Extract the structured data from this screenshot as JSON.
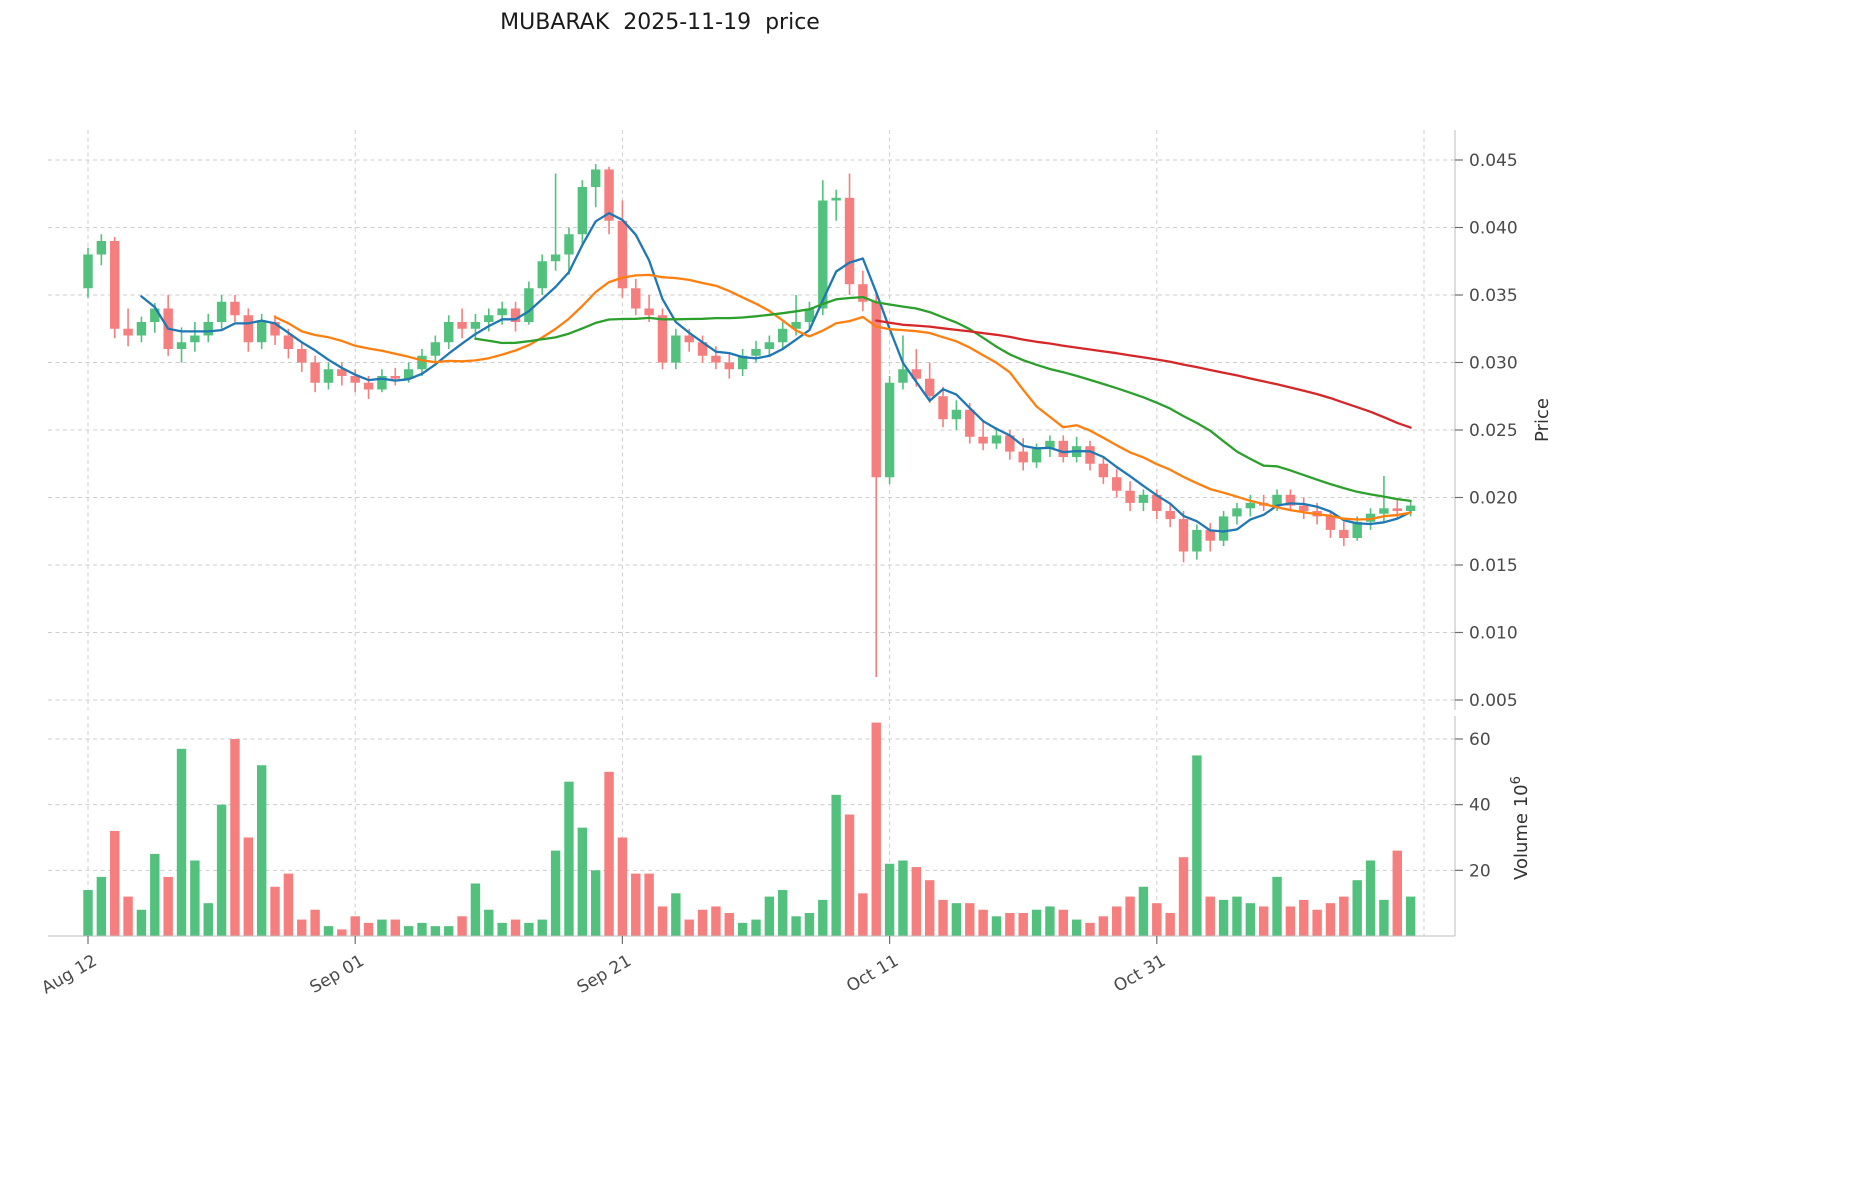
{
  "chart_data": {
    "type": "candlestick",
    "title": "MUBARAK  2025-11-19  price",
    "ylabel": "Price",
    "volume_ylabel_base": "Volume  10",
    "volume_ylabel_exp": "6",
    "legend_position": "none",
    "grid": true,
    "price_ticks": [
      0.005,
      0.01,
      0.015,
      0.02,
      0.025,
      0.03,
      0.035,
      0.04,
      0.045
    ],
    "price_ylim": [
      0.0043,
      0.0472
    ],
    "volume_ticks": [
      20,
      40,
      60
    ],
    "volume_ylim": [
      0,
      67
    ],
    "x_ticks": [
      {
        "index": 0,
        "label": "Aug 12"
      },
      {
        "index": 20,
        "label": "Sep 01"
      },
      {
        "index": 40,
        "label": "Sep 21"
      },
      {
        "index": 60,
        "label": "Oct 11"
      },
      {
        "index": 80,
        "label": "Oct 31"
      },
      {
        "index": 100,
        "label": ""
      }
    ],
    "up_color": "#53c17e",
    "down_color": "#f57e7e",
    "ma_windows": [
      5,
      15,
      30,
      60
    ],
    "ma_colors": [
      "#1f77b4",
      "#ff7f0e",
      "#2ca02c",
      "#d62728"
    ],
    "candles_format": [
      "open",
      "high",
      "low",
      "close",
      "volume_millions"
    ],
    "candles": [
      [
        0.0355,
        0.0385,
        0.0348,
        0.038,
        14
      ],
      [
        0.038,
        0.0395,
        0.0372,
        0.039,
        18
      ],
      [
        0.039,
        0.0393,
        0.0318,
        0.0325,
        32
      ],
      [
        0.0325,
        0.034,
        0.0312,
        0.032,
        12
      ],
      [
        0.032,
        0.0334,
        0.0315,
        0.033,
        8
      ],
      [
        0.033,
        0.0344,
        0.0322,
        0.034,
        25
      ],
      [
        0.034,
        0.035,
        0.0305,
        0.031,
        18
      ],
      [
        0.031,
        0.0326,
        0.03,
        0.0315,
        57
      ],
      [
        0.0315,
        0.033,
        0.0308,
        0.032,
        23
      ],
      [
        0.032,
        0.0336,
        0.0315,
        0.033,
        10
      ],
      [
        0.033,
        0.035,
        0.0325,
        0.0345,
        40
      ],
      [
        0.0345,
        0.035,
        0.033,
        0.0335,
        60
      ],
      [
        0.0335,
        0.034,
        0.0308,
        0.0315,
        30
      ],
      [
        0.0315,
        0.0336,
        0.031,
        0.033,
        52
      ],
      [
        0.033,
        0.0335,
        0.0313,
        0.032,
        15
      ],
      [
        0.032,
        0.0325,
        0.0303,
        0.031,
        19
      ],
      [
        0.031,
        0.0315,
        0.0293,
        0.03,
        5
      ],
      [
        0.03,
        0.0305,
        0.0278,
        0.0285,
        8
      ],
      [
        0.0285,
        0.03,
        0.028,
        0.0295,
        3
      ],
      [
        0.0295,
        0.03,
        0.0283,
        0.029,
        2
      ],
      [
        0.029,
        0.0295,
        0.0278,
        0.0285,
        6
      ],
      [
        0.0285,
        0.029,
        0.0273,
        0.028,
        4
      ],
      [
        0.028,
        0.0295,
        0.0278,
        0.029,
        5
      ],
      [
        0.029,
        0.0296,
        0.0283,
        0.0288,
        5
      ],
      [
        0.0288,
        0.03,
        0.0285,
        0.0295,
        3
      ],
      [
        0.0295,
        0.031,
        0.029,
        0.0305,
        4
      ],
      [
        0.0305,
        0.032,
        0.03,
        0.0315,
        3
      ],
      [
        0.0315,
        0.0335,
        0.031,
        0.033,
        3
      ],
      [
        0.033,
        0.034,
        0.0318,
        0.0325,
        6
      ],
      [
        0.0325,
        0.0336,
        0.0318,
        0.033,
        16
      ],
      [
        0.033,
        0.034,
        0.0323,
        0.0335,
        8
      ],
      [
        0.0335,
        0.0345,
        0.0328,
        0.034,
        4
      ],
      [
        0.034,
        0.0345,
        0.0323,
        0.033,
        5
      ],
      [
        0.033,
        0.036,
        0.0328,
        0.0355,
        4
      ],
      [
        0.0355,
        0.038,
        0.035,
        0.0375,
        5
      ],
      [
        0.0375,
        0.044,
        0.0368,
        0.038,
        26
      ],
      [
        0.038,
        0.04,
        0.0365,
        0.0395,
        47
      ],
      [
        0.0395,
        0.0435,
        0.0388,
        0.043,
        33
      ],
      [
        0.043,
        0.0447,
        0.0415,
        0.0443,
        20
      ],
      [
        0.0443,
        0.0445,
        0.0395,
        0.0405,
        50
      ],
      [
        0.0405,
        0.042,
        0.0348,
        0.0355,
        30
      ],
      [
        0.0355,
        0.0362,
        0.0335,
        0.034,
        19
      ],
      [
        0.034,
        0.035,
        0.033,
        0.0335,
        19
      ],
      [
        0.0335,
        0.034,
        0.0295,
        0.03,
        9
      ],
      [
        0.03,
        0.0325,
        0.0295,
        0.032,
        13
      ],
      [
        0.032,
        0.0325,
        0.0308,
        0.0315,
        5
      ],
      [
        0.0315,
        0.032,
        0.03,
        0.0305,
        8
      ],
      [
        0.0305,
        0.0312,
        0.0295,
        0.03,
        9
      ],
      [
        0.03,
        0.0306,
        0.0288,
        0.0295,
        7
      ],
      [
        0.0295,
        0.031,
        0.029,
        0.0305,
        4
      ],
      [
        0.0305,
        0.0316,
        0.03,
        0.031,
        5
      ],
      [
        0.031,
        0.032,
        0.0304,
        0.0315,
        12
      ],
      [
        0.0315,
        0.033,
        0.031,
        0.0325,
        14
      ],
      [
        0.0325,
        0.035,
        0.032,
        0.033,
        6
      ],
      [
        0.033,
        0.0345,
        0.0325,
        0.034,
        7
      ],
      [
        0.034,
        0.0435,
        0.0335,
        0.042,
        11
      ],
      [
        0.042,
        0.0428,
        0.0405,
        0.0422,
        43
      ],
      [
        0.0422,
        0.044,
        0.035,
        0.0358,
        37
      ],
      [
        0.0358,
        0.0368,
        0.0338,
        0.0345,
        13
      ],
      [
        0.0345,
        0.0352,
        0.0067,
        0.0215,
        65
      ],
      [
        0.0215,
        0.029,
        0.021,
        0.0285,
        22
      ],
      [
        0.0285,
        0.032,
        0.028,
        0.0295,
        23
      ],
      [
        0.0295,
        0.031,
        0.0282,
        0.0288,
        21
      ],
      [
        0.0288,
        0.03,
        0.027,
        0.0275,
        17
      ],
      [
        0.0275,
        0.0282,
        0.0252,
        0.0258,
        11
      ],
      [
        0.0258,
        0.0272,
        0.025,
        0.0265,
        10
      ],
      [
        0.0265,
        0.027,
        0.024,
        0.0245,
        10
      ],
      [
        0.0245,
        0.0256,
        0.0235,
        0.024,
        8
      ],
      [
        0.024,
        0.0252,
        0.0236,
        0.0246,
        6
      ],
      [
        0.0246,
        0.025,
        0.0228,
        0.0234,
        7
      ],
      [
        0.0234,
        0.0244,
        0.022,
        0.0226,
        7
      ],
      [
        0.0226,
        0.024,
        0.0222,
        0.0236,
        8
      ],
      [
        0.0236,
        0.0246,
        0.023,
        0.0242,
        9
      ],
      [
        0.0242,
        0.0246,
        0.0226,
        0.023,
        8
      ],
      [
        0.023,
        0.0245,
        0.0226,
        0.0238,
        5
      ],
      [
        0.0238,
        0.0242,
        0.022,
        0.0225,
        4
      ],
      [
        0.0225,
        0.023,
        0.021,
        0.0215,
        6
      ],
      [
        0.0215,
        0.0221,
        0.02,
        0.0205,
        9
      ],
      [
        0.0205,
        0.0212,
        0.019,
        0.0196,
        12
      ],
      [
        0.0196,
        0.0206,
        0.019,
        0.0202,
        15
      ],
      [
        0.0202,
        0.0206,
        0.0184,
        0.019,
        10
      ],
      [
        0.019,
        0.0196,
        0.0178,
        0.0184,
        7
      ],
      [
        0.0184,
        0.019,
        0.0152,
        0.016,
        24
      ],
      [
        0.016,
        0.018,
        0.0154,
        0.0176,
        55
      ],
      [
        0.0176,
        0.0181,
        0.016,
        0.0168,
        12
      ],
      [
        0.0168,
        0.019,
        0.0164,
        0.0186,
        11
      ],
      [
        0.0186,
        0.0196,
        0.018,
        0.0192,
        12
      ],
      [
        0.0192,
        0.0202,
        0.0186,
        0.0196,
        10
      ],
      [
        0.0196,
        0.0202,
        0.019,
        0.0194,
        9
      ],
      [
        0.0194,
        0.0206,
        0.019,
        0.0202,
        18
      ],
      [
        0.0202,
        0.0206,
        0.019,
        0.0194,
        9
      ],
      [
        0.0194,
        0.02,
        0.0184,
        0.019,
        11
      ],
      [
        0.019,
        0.0196,
        0.018,
        0.0186,
        8
      ],
      [
        0.0186,
        0.019,
        0.017,
        0.0176,
        10
      ],
      [
        0.0176,
        0.0182,
        0.0164,
        0.017,
        12
      ],
      [
        0.017,
        0.0186,
        0.0168,
        0.0182,
        17
      ],
      [
        0.0182,
        0.0192,
        0.0176,
        0.0188,
        23
      ],
      [
        0.0188,
        0.0216,
        0.0182,
        0.0192,
        11
      ],
      [
        0.0192,
        0.0198,
        0.0184,
        0.019,
        26
      ],
      [
        0.019,
        0.0198,
        0.0186,
        0.0194,
        12
      ]
    ]
  }
}
